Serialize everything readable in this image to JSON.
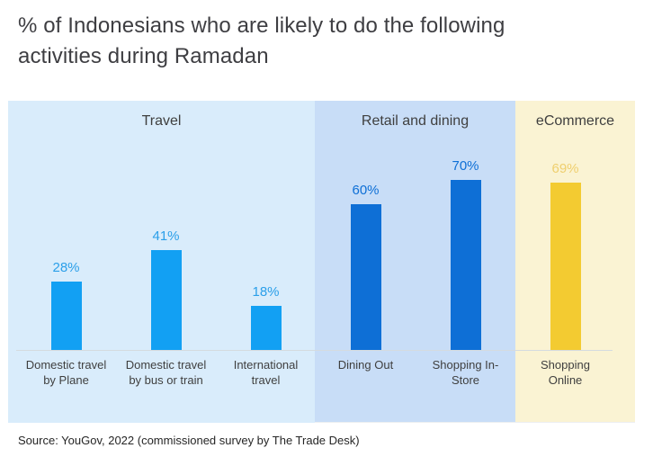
{
  "title": {
    "line1": "% of Indonesians who are likely to do the following",
    "line2": "activities during Ramadan"
  },
  "source": "Source: YouGov, 2022 (commissioned survey by The Trade Desk)",
  "colors": {
    "title_text": "#3e3e42",
    "section_text": "#3f3f3f",
    "axis_line": "#d5dbdf",
    "travel_panel_bg": "#d9ecfb",
    "retail_panel_bg": "#c8ddf7",
    "ecommerce_panel_bg": "#faf3d3",
    "travel_bar": "#12a0f3",
    "travel_value_label": "#2b9fe9",
    "retail_bar": "#0e6fd6",
    "retail_value_label": "#0e6fd6",
    "ecommerce_bar": "#f3cb31",
    "ecommerce_value_label": "#efcf6e"
  },
  "chart_data": {
    "type": "bar",
    "title": "% of Indonesians who are likely to do the following activities during Ramadan",
    "unit": "%",
    "ylim": [
      0,
      100
    ],
    "grid": false,
    "legend": "none",
    "groups": [
      {
        "label": "Travel",
        "panel_bg": "#d9ecfb",
        "bar_color": "#12a0f3",
        "value_label_color": "#2b9fe9",
        "categories": [
          "Domestic travel\nby Plane",
          "Domestic travel\nby bus or train",
          "International\ntravel"
        ],
        "values": [
          28,
          41,
          18
        ]
      },
      {
        "label": "Retail and dining",
        "panel_bg": "#c8ddf7",
        "bar_color": "#0e6fd6",
        "value_label_color": "#0e6fd6",
        "categories": [
          "Dining Out",
          "Shopping In-\nStore"
        ],
        "values": [
          60,
          70
        ]
      },
      {
        "label": "eCommerce",
        "panel_bg": "#faf3d3",
        "bar_color": "#f3cb31",
        "value_label_color": "#efcf6e",
        "categories": [
          "Shopping\nOnline"
        ],
        "values": [
          69
        ]
      }
    ]
  }
}
